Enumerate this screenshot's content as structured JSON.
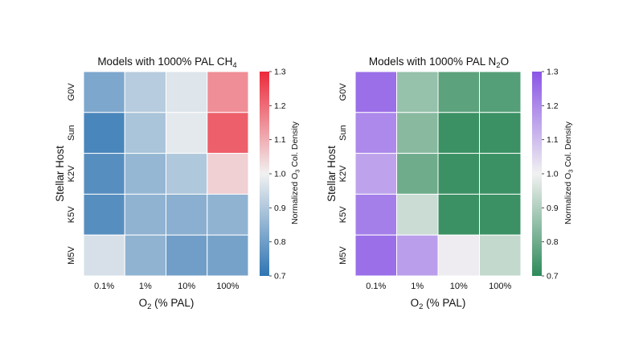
{
  "chart_data": [
    {
      "type": "heatmap",
      "title": "Models with 1000% PAL CH",
      "title_sub": "4",
      "xlabel": "O",
      "xlabel_sub": "2",
      "xlabel_rest": " (% PAL)",
      "ylabel": "Stellar Host",
      "x": [
        "0.1%",
        "1%",
        "10%",
        "100%"
      ],
      "y": [
        "G0V",
        "Sun",
        "K2V",
        "K5V",
        "M5V"
      ],
      "values": [
        [
          0.82,
          0.91,
          0.97,
          1.15
        ],
        [
          0.74,
          0.89,
          0.98,
          1.22
        ],
        [
          0.76,
          0.86,
          0.9,
          1.05
        ],
        [
          0.76,
          0.85,
          0.84,
          0.85
        ],
        [
          0.96,
          0.85,
          0.8,
          0.81
        ]
      ],
      "colorbar": {
        "label_pre": "Normalized O",
        "label_sub": "3",
        "label_post": " Col. Density",
        "range": [
          0.7,
          1.3
        ],
        "ticks": [
          "0.7",
          "0.8",
          "0.9",
          "1.0",
          "1.1",
          "1.2",
          "1.3"
        ],
        "low_color": "#2f75b3",
        "mid_color": "#f1f1f1",
        "high_color": "#ec2a3a"
      }
    },
    {
      "type": "heatmap",
      "title": "Models with 1000% PAL N",
      "title_sub": "2",
      "title_post": "O",
      "xlabel": "O",
      "xlabel_sub": "2",
      "xlabel_rest": " (% PAL)",
      "ylabel": "Stellar Host",
      "x": [
        "0.1%",
        "1%",
        "10%",
        "100%"
      ],
      "y": [
        "G0V",
        "Sun",
        "K2V",
        "K5V",
        "M5V"
      ],
      "values": [
        [
          1.25,
          0.86,
          0.77,
          0.76
        ],
        [
          1.2,
          0.84,
          0.72,
          0.72
        ],
        [
          1.15,
          0.8,
          0.72,
          0.72
        ],
        [
          1.22,
          0.94,
          0.72,
          0.72
        ],
        [
          1.25,
          1.16,
          1.01,
          0.93
        ]
      ],
      "colorbar": {
        "label_pre": "Normalized O",
        "label_sub": "3",
        "label_post": " Col. Density",
        "range": [
          0.7,
          1.3
        ],
        "ticks": [
          "0.7",
          "0.8",
          "0.9",
          "1.0",
          "1.1",
          "1.2",
          "1.3"
        ],
        "low_color": "#2e8a5a",
        "mid_color": "#f1f1f1",
        "high_color": "#8a55e6"
      }
    }
  ]
}
